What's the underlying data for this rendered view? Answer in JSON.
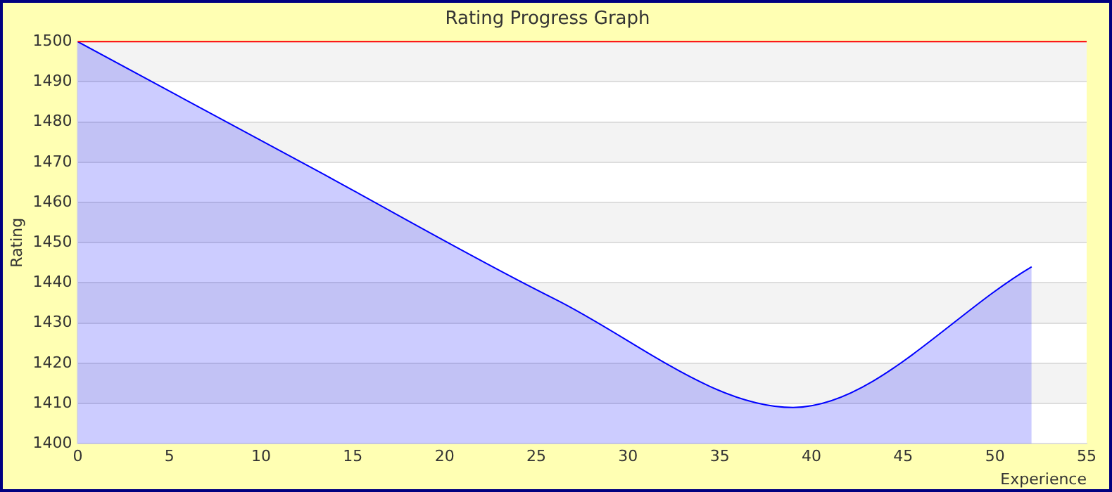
{
  "chart_data": {
    "type": "area",
    "title": "Rating Progress Graph",
    "xlabel": "Experience",
    "ylabel": "Rating",
    "x": [
      0,
      13,
      26,
      39,
      52
    ],
    "series": [
      {
        "color": "#0000ff",
        "values": [
          1500,
          1468,
          1436,
          1409,
          1444
        ]
      }
    ],
    "xlim": [
      0,
      55
    ],
    "xticks": [
      0,
      5,
      10,
      15,
      20,
      25,
      30,
      35,
      40,
      45,
      50,
      55
    ],
    "ylim": [
      1400,
      1500
    ],
    "yticks": [
      1400,
      1410,
      1420,
      1430,
      1440,
      1450,
      1460,
      1470,
      1480,
      1490,
      1500
    ],
    "ref_lines": [
      {
        "axis": "y",
        "value": 1500,
        "color": "#ff0000"
      }
    ],
    "grid": "y",
    "legend": false,
    "marker": "none",
    "line_style": "solid"
  }
}
